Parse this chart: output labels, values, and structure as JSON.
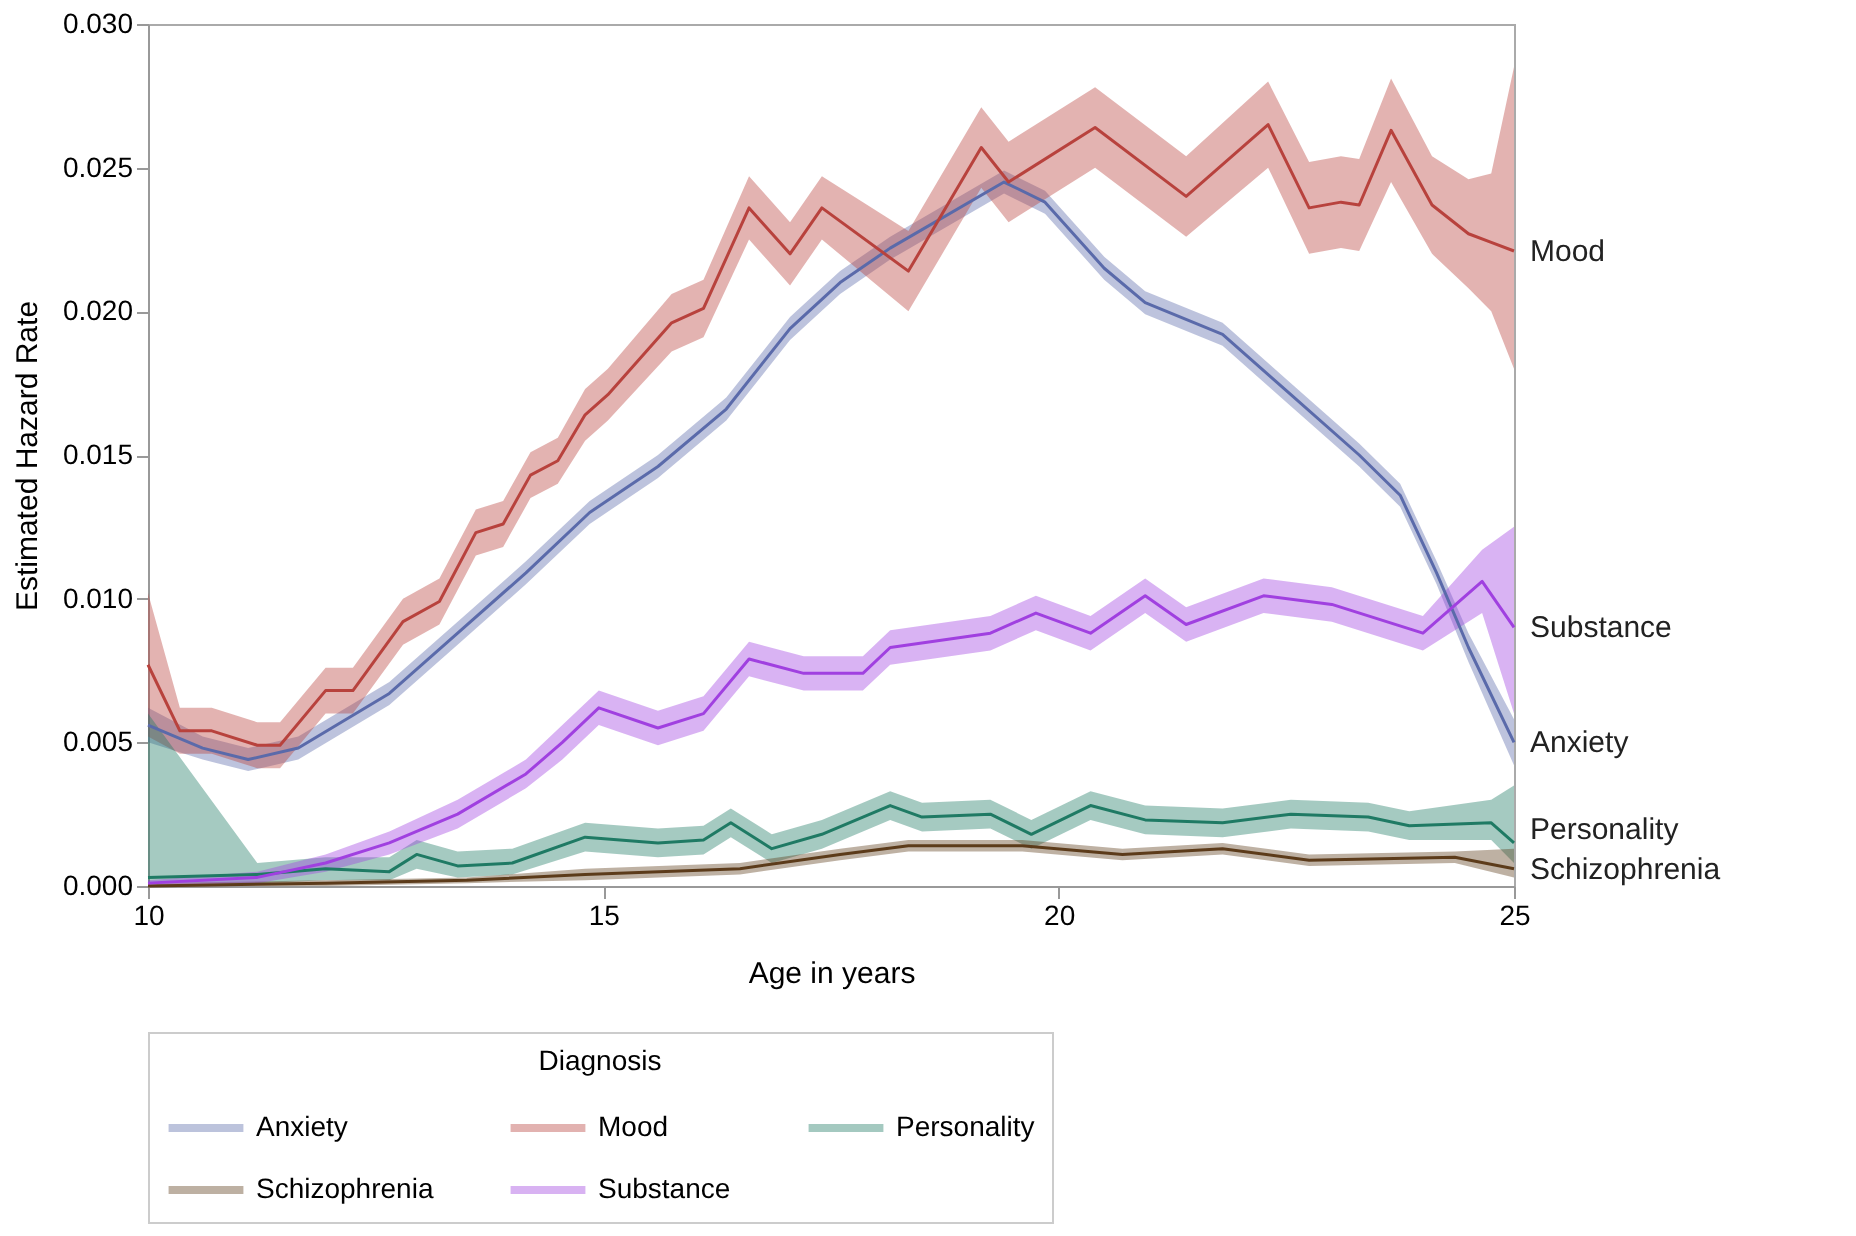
{
  "chart_data": {
    "type": "line",
    "xlabel": "Age in years",
    "ylabel": "Estimated Hazard Rate",
    "legend_title": "Diagnosis",
    "legend": "bottom",
    "grid": false,
    "marker": "none",
    "line_style": "solid",
    "xlim": [
      10,
      25
    ],
    "xticks": [
      10,
      15,
      20,
      25
    ],
    "ylim": [
      0,
      0.03
    ],
    "yticks": [
      {
        "value": 0,
        "label": "0.000"
      },
      {
        "value": 0.005,
        "label": "0.005"
      },
      {
        "value": 0.01,
        "label": "0.010"
      },
      {
        "value": 0.015,
        "label": "0.015"
      },
      {
        "value": 0.02,
        "label": "0.020"
      },
      {
        "value": 0.025,
        "label": "0.025"
      },
      {
        "value": 0.03,
        "label": "0.030"
      }
    ],
    "series": [
      {
        "name": "Anxiety",
        "color": "#5a6aaa",
        "x": [
          10,
          10.6,
          11.1,
          11.65,
          12.65,
          13.4,
          14.15,
          14.85,
          15.6,
          16.35,
          17.05,
          17.6,
          18.15,
          19.4,
          19.85,
          20.5,
          20.95,
          21.8,
          22.55,
          23.3,
          23.75,
          24.15,
          24.5,
          25
        ],
        "values": [
          0.0056,
          0.0048,
          0.0044,
          0.0048,
          0.0067,
          0.0088,
          0.0109,
          0.013,
          0.0146,
          0.0166,
          0.0194,
          0.021,
          0.0222,
          0.0245,
          0.0238,
          0.0215,
          0.0203,
          0.0192,
          0.0171,
          0.015,
          0.0136,
          0.0109,
          0.0083,
          0.005
        ],
        "lower": [
          0.005,
          0.0044,
          0.004,
          0.0044,
          0.0063,
          0.0084,
          0.0105,
          0.0126,
          0.0142,
          0.0162,
          0.019,
          0.0206,
          0.0218,
          0.0241,
          0.0234,
          0.0211,
          0.0199,
          0.0188,
          0.0167,
          0.0146,
          0.0132,
          0.0105,
          0.0078,
          0.0042
        ],
        "upper": [
          0.0062,
          0.0052,
          0.0048,
          0.0052,
          0.0071,
          0.0092,
          0.0113,
          0.0134,
          0.015,
          0.017,
          0.0198,
          0.0214,
          0.0226,
          0.0249,
          0.0242,
          0.0219,
          0.0207,
          0.0196,
          0.0175,
          0.0154,
          0.014,
          0.0113,
          0.0088,
          0.0058
        ]
      },
      {
        "name": "Mood",
        "color": "#b8423d",
        "x": [
          10,
          10.35,
          10.7,
          11.2,
          11.45,
          11.95,
          12.25,
          12.8,
          13.2,
          13.6,
          13.9,
          14.2,
          14.5,
          14.8,
          15.05,
          15.75,
          16.1,
          16.6,
          17.05,
          17.4,
          18.35,
          19.15,
          19.45,
          20.4,
          21.4,
          22.3,
          22.75,
          23.1,
          23.3,
          23.65,
          24.1,
          24.5,
          24.75,
          25
        ],
        "values": [
          0.0077,
          0.0054,
          0.0054,
          0.0049,
          0.0049,
          0.0068,
          0.0068,
          0.0092,
          0.0099,
          0.0123,
          0.0126,
          0.0143,
          0.0148,
          0.0164,
          0.0171,
          0.0196,
          0.0201,
          0.0236,
          0.022,
          0.0236,
          0.0214,
          0.0257,
          0.0245,
          0.0264,
          0.024,
          0.0265,
          0.0236,
          0.0238,
          0.0237,
          0.0263,
          0.0237,
          0.0227,
          0.0224,
          0.0221
        ],
        "lower": [
          0.0052,
          0.0046,
          0.0046,
          0.0041,
          0.0041,
          0.006,
          0.006,
          0.0084,
          0.0091,
          0.0115,
          0.0118,
          0.0135,
          0.014,
          0.0155,
          0.0162,
          0.0186,
          0.0191,
          0.0225,
          0.0209,
          0.0225,
          0.02,
          0.0243,
          0.0231,
          0.025,
          0.0226,
          0.025,
          0.022,
          0.0222,
          0.0221,
          0.0245,
          0.022,
          0.0208,
          0.02,
          0.018
        ],
        "upper": [
          0.0102,
          0.0062,
          0.0062,
          0.0057,
          0.0057,
          0.0076,
          0.0076,
          0.01,
          0.0107,
          0.0131,
          0.0134,
          0.0151,
          0.0156,
          0.0173,
          0.018,
          0.0206,
          0.0211,
          0.0247,
          0.0231,
          0.0247,
          0.0228,
          0.0271,
          0.0259,
          0.0278,
          0.0254,
          0.028,
          0.0252,
          0.0254,
          0.0253,
          0.0281,
          0.0254,
          0.0246,
          0.0248,
          0.0285
        ]
      },
      {
        "name": "Personality",
        "color": "#1f7a64",
        "x": [
          10,
          11.2,
          11.95,
          12.65,
          12.95,
          13.4,
          14,
          14.8,
          15.6,
          16.1,
          16.4,
          16.85,
          17.4,
          18.15,
          18.5,
          19.25,
          19.7,
          20.35,
          20.95,
          21.8,
          22.55,
          23.4,
          23.85,
          24.75,
          25
        ],
        "values": [
          0.0003,
          0.0004,
          0.0006,
          0.0005,
          0.0011,
          0.0007,
          0.0008,
          0.0017,
          0.0015,
          0.0016,
          0.0022,
          0.0013,
          0.0018,
          0.0028,
          0.0024,
          0.0025,
          0.0018,
          0.0028,
          0.0023,
          0.0022,
          0.0025,
          0.0024,
          0.0021,
          0.0022,
          0.0015
        ],
        "lower": [
          0.0001,
          0.0001,
          0.0002,
          0.0002,
          0.0006,
          0.0003,
          0.0004,
          0.0012,
          0.001,
          0.0011,
          0.0017,
          0.0008,
          0.0013,
          0.0023,
          0.0019,
          0.002,
          0.0013,
          0.0023,
          0.0018,
          0.0017,
          0.002,
          0.0019,
          0.0016,
          0.0016,
          0.0008
        ],
        "upper": [
          0.006,
          0.0008,
          0.001,
          0.001,
          0.0016,
          0.0012,
          0.0013,
          0.0022,
          0.002,
          0.0021,
          0.0027,
          0.0018,
          0.0023,
          0.0033,
          0.0029,
          0.003,
          0.0023,
          0.0033,
          0.0028,
          0.0027,
          0.003,
          0.0029,
          0.0026,
          0.003,
          0.0035
        ]
      },
      {
        "name": "Schizophrenia",
        "color": "#5c3b1a",
        "x": [
          10,
          11.95,
          13.5,
          14.8,
          16.5,
          17.6,
          18.35,
          19.6,
          20.7,
          21.8,
          22.75,
          24.35,
          25
        ],
        "values": [
          0.0,
          0.0001,
          0.0002,
          0.0004,
          0.0006,
          0.0011,
          0.0014,
          0.0014,
          0.0011,
          0.0013,
          0.0009,
          0.001,
          0.0006
        ],
        "lower": [
          0.0,
          0.0,
          0.0001,
          0.0002,
          0.0004,
          0.0009,
          0.0012,
          0.0012,
          0.0009,
          0.0011,
          0.0007,
          0.0008,
          0.0003
        ],
        "upper": [
          0.0001,
          0.0002,
          0.0003,
          0.0006,
          0.0008,
          0.0013,
          0.0016,
          0.0016,
          0.0013,
          0.0015,
          0.0011,
          0.0012,
          0.0013
        ]
      },
      {
        "name": "Substance",
        "color": "#a040e0",
        "x": [
          10,
          11.2,
          11.95,
          12.65,
          13.4,
          14.15,
          14.55,
          14.95,
          15.6,
          16.1,
          16.6,
          17.2,
          17.85,
          18.15,
          19.25,
          19.75,
          20.35,
          20.95,
          21.4,
          22.25,
          23,
          24,
          24.65,
          25
        ],
        "values": [
          0.0001,
          0.0003,
          0.0008,
          0.0015,
          0.0025,
          0.0039,
          0.005,
          0.0062,
          0.0055,
          0.006,
          0.0079,
          0.0074,
          0.0074,
          0.0083,
          0.0088,
          0.0095,
          0.0088,
          0.0101,
          0.0091,
          0.0101,
          0.0098,
          0.0088,
          0.0106,
          0.009
        ],
        "lower": [
          0.0,
          0.0001,
          0.0005,
          0.0011,
          0.002,
          0.0034,
          0.0044,
          0.0056,
          0.0049,
          0.0054,
          0.0073,
          0.0068,
          0.0068,
          0.0077,
          0.0082,
          0.0089,
          0.0082,
          0.0095,
          0.0085,
          0.0095,
          0.0092,
          0.0082,
          0.0095,
          0.006
        ],
        "upper": [
          0.0002,
          0.0005,
          0.0011,
          0.0019,
          0.003,
          0.0044,
          0.0056,
          0.0068,
          0.0061,
          0.0066,
          0.0085,
          0.008,
          0.008,
          0.0089,
          0.0094,
          0.0101,
          0.0094,
          0.0107,
          0.0097,
          0.0107,
          0.0104,
          0.0094,
          0.0117,
          0.0125
        ]
      }
    ]
  }
}
